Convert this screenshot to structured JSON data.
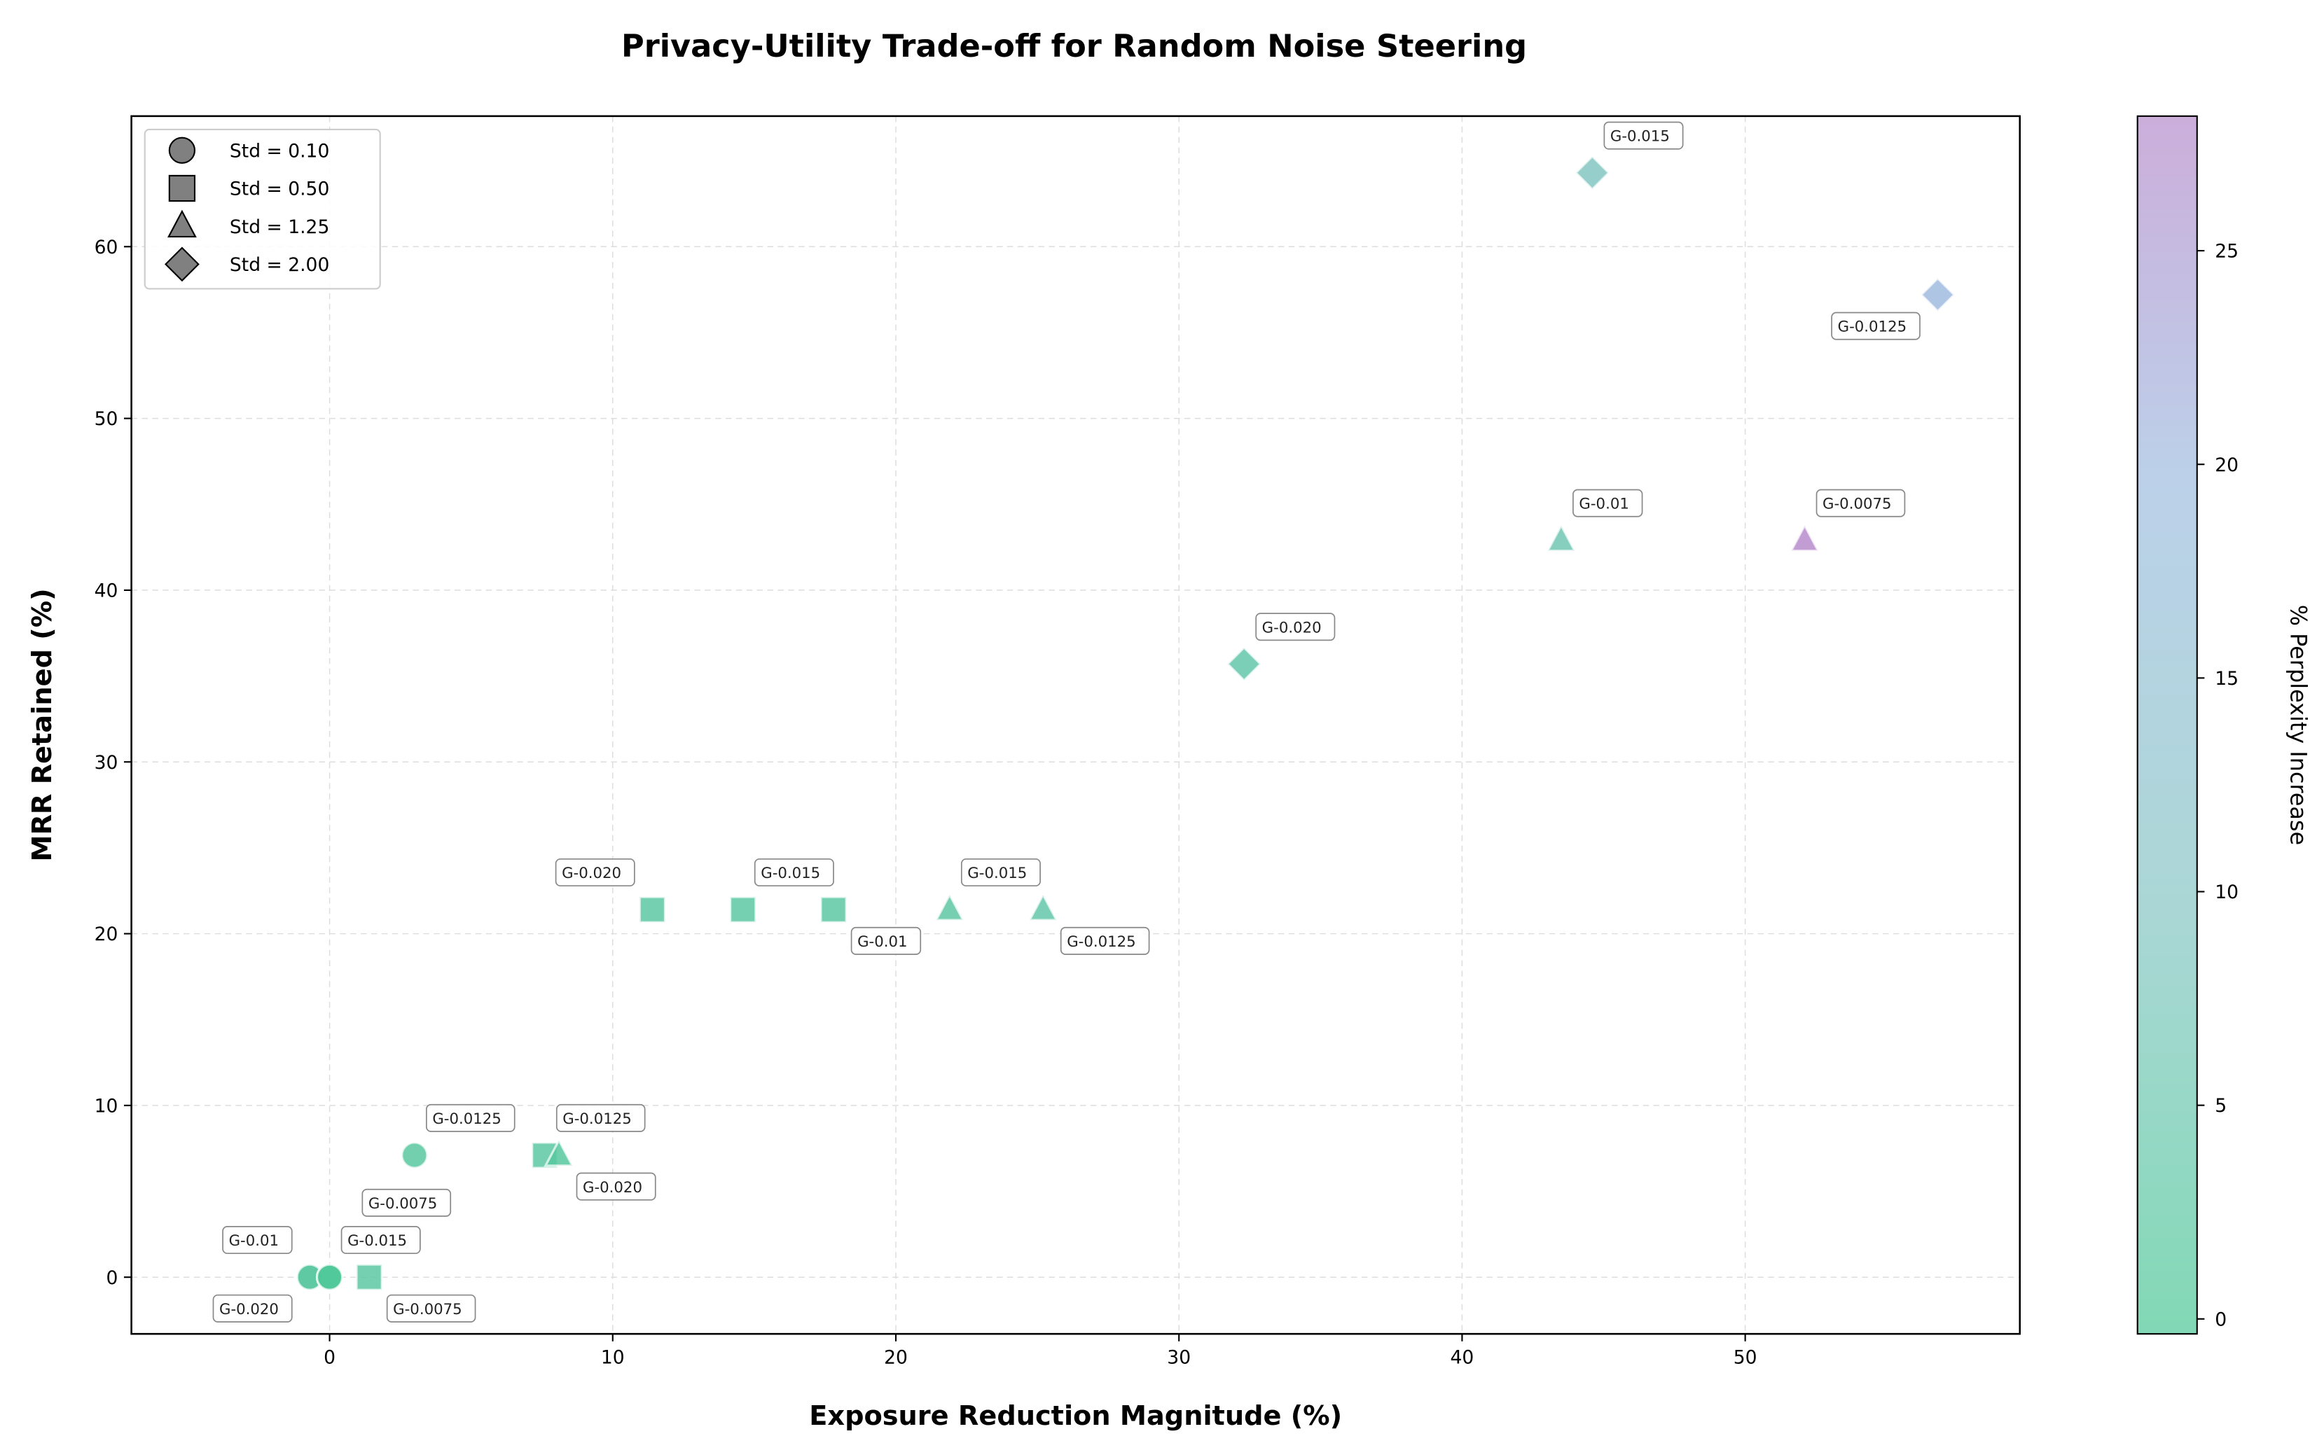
{
  "chart_data": {
    "type": "scatter",
    "title": "Privacy-Utility Trade-off for Random Noise Steering",
    "xlabel": "Exposure Reduction Magnitude (%)",
    "ylabel": "MRR Retained (%)",
    "xlim": [
      -7,
      59.7
    ],
    "ylim": [
      -3.3,
      67.6
    ],
    "xticks": [
      "0",
      "10",
      "20",
      "30",
      "40",
      "50"
    ],
    "yticks": [
      "0",
      "10",
      "20",
      "30",
      "40",
      "50",
      "60"
    ],
    "grid": true,
    "legend_placement": "top-left",
    "legend": [
      {
        "label": "Std = 0.10",
        "marker": "circle"
      },
      {
        "label": "Std = 0.50",
        "marker": "square"
      },
      {
        "label": "Std = 1.25",
        "marker": "triangle"
      },
      {
        "label": "Std = 2.00",
        "marker": "diamond"
      }
    ],
    "colorbar": {
      "label": "% Perplexity Increase",
      "range": [
        -0.35,
        28.15
      ],
      "ticks": [
        "0",
        "5",
        "10",
        "15",
        "20",
        "25"
      ],
      "colors": [
        "#4cc896",
        "#86c6c4",
        "#9fbde0",
        "#b68bcc"
      ]
    },
    "points": [
      {
        "std": 0.1,
        "marker": "circle",
        "x": -0.7,
        "y": 0,
        "perplexity": 2,
        "label": "G-0.01",
        "label_pos": "above-left"
      },
      {
        "std": 0.1,
        "marker": "circle",
        "x": -0.7,
        "y": 0,
        "perplexity": 2,
        "label": "G-0.020",
        "label_pos": "below-left"
      },
      {
        "std": 0.1,
        "marker": "circle",
        "x": 0.0,
        "y": 0,
        "perplexity": 0.5,
        "label": "G-0.0075",
        "label_pos": "above-right-far"
      },
      {
        "std": 0.1,
        "marker": "circle",
        "x": 0.0,
        "y": 0,
        "perplexity": 0,
        "label": "G-0.015",
        "label_pos": "above-right"
      },
      {
        "std": 0.1,
        "marker": "circle",
        "x": 3.0,
        "y": 7.1,
        "perplexity": 2,
        "label": "G-0.0125",
        "label_pos": "above-right"
      },
      {
        "std": 0.5,
        "marker": "square",
        "x": 1.4,
        "y": 0,
        "perplexity": 2.5,
        "label": "G-0.0075",
        "label_pos": "below-right"
      },
      {
        "std": 0.5,
        "marker": "square",
        "x": 7.6,
        "y": 7.1,
        "perplexity": 2.5,
        "label": "G-0.0125",
        "label_pos": "above-right"
      },
      {
        "std": 0.5,
        "marker": "square",
        "x": 11.4,
        "y": 21.4,
        "perplexity": 2.5,
        "label": "G-0.020",
        "label_pos": "above-left"
      },
      {
        "std": 0.5,
        "marker": "square",
        "x": 14.6,
        "y": 21.4,
        "perplexity": 2.5,
        "label": "G-0.015",
        "label_pos": "above-right"
      },
      {
        "std": 0.5,
        "marker": "square",
        "x": 17.8,
        "y": 21.4,
        "perplexity": 2.5,
        "label": "G-0.01",
        "label_pos": "below-right"
      },
      {
        "std": 1.25,
        "marker": "triangle",
        "x": 8.1,
        "y": 7.1,
        "perplexity": 1.5,
        "label": "G-0.020",
        "label_pos": "below-right"
      },
      {
        "std": 1.25,
        "marker": "triangle",
        "x": 21.9,
        "y": 21.4,
        "perplexity": 3,
        "label": "G-0.015",
        "label_pos": "above-right"
      },
      {
        "std": 1.25,
        "marker": "triangle",
        "x": 25.2,
        "y": 21.4,
        "perplexity": 4,
        "label": "G-0.0125",
        "label_pos": "below-right"
      },
      {
        "std": 1.25,
        "marker": "triangle",
        "x": 43.5,
        "y": 42.9,
        "perplexity": 6,
        "label": "G-0.01",
        "label_pos": "above-right"
      },
      {
        "std": 1.25,
        "marker": "triangle",
        "x": 52.1,
        "y": 42.9,
        "perplexity": 28,
        "label": "G-0.0075",
        "label_pos": "above-right"
      },
      {
        "std": 2.0,
        "marker": "diamond",
        "x": 32.3,
        "y": 35.7,
        "perplexity": 4,
        "label": "G-0.020",
        "label_pos": "above-right"
      },
      {
        "std": 2.0,
        "marker": "diamond",
        "x": 44.6,
        "y": 64.3,
        "perplexity": 9,
        "label": "G-0.015",
        "label_pos": "above-right"
      },
      {
        "std": 2.0,
        "marker": "diamond",
        "x": 56.8,
        "y": 57.2,
        "perplexity": 20,
        "label": "G-0.0125",
        "label_pos": "below-left"
      }
    ]
  }
}
